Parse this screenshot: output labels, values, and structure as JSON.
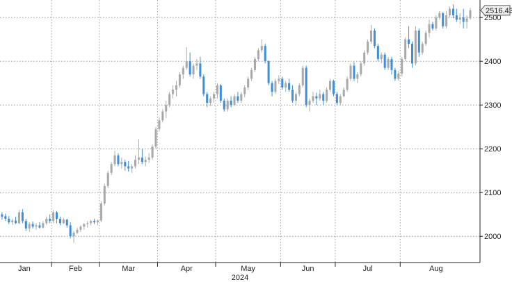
{
  "chart_data": {
    "type": "candlestick",
    "title": "",
    "xlabel": "2024",
    "ylabel": "",
    "ylim": [
      1940,
      2540
    ],
    "y_ticks": [
      2000,
      2100,
      2200,
      2300,
      2400,
      2500
    ],
    "x_ticks": [
      "Jan",
      "Feb",
      "Mar",
      "Apr",
      "May",
      "Jun",
      "Jul",
      "Aug"
    ],
    "year_label": "2024",
    "last_value": 2516.43,
    "last_value_label": "2516.43",
    "grid": true,
    "colors": {
      "up": "#a9a9a9",
      "down": "#3d8fdb",
      "grid": "#8a8a8a",
      "axis": "#222222"
    },
    "candles": [
      {
        "month": "Jan",
        "ohlc": [
          [
            2060,
            2068,
            2045,
            2050
          ],
          [
            2050,
            2055,
            2038,
            2045
          ],
          [
            2046,
            2052,
            2035,
            2040
          ],
          [
            2040,
            2046,
            2028,
            2032
          ],
          [
            2032,
            2040,
            2026,
            2036
          ],
          [
            2036,
            2045,
            2028,
            2030
          ],
          [
            2030,
            2060,
            2028,
            2055
          ],
          [
            2055,
            2062,
            2030,
            2035
          ],
          [
            2035,
            2040,
            2012,
            2018
          ],
          [
            2018,
            2032,
            2010,
            2028
          ],
          [
            2028,
            2034,
            2018,
            2022
          ],
          [
            2022,
            2030,
            2015,
            2025
          ],
          [
            2025,
            2032,
            2018,
            2020
          ],
          [
            2020,
            2035,
            2018,
            2030
          ],
          [
            2030,
            2045,
            2026,
            2040
          ],
          [
            2040,
            2050,
            2030,
            2035
          ]
        ]
      },
      {
        "month": "Feb",
        "ohlc": [
          [
            2035,
            2060,
            2030,
            2055
          ],
          [
            2055,
            2058,
            2030,
            2040
          ],
          [
            2040,
            2045,
            2025,
            2030
          ],
          [
            2030,
            2042,
            2028,
            2038
          ],
          [
            2038,
            2040,
            2020,
            2025
          ],
          [
            2025,
            2032,
            1995,
            2000
          ],
          [
            2000,
            2012,
            1985,
            2008
          ],
          [
            2008,
            2020,
            2005,
            2015
          ],
          [
            2015,
            2025,
            2010,
            2022
          ],
          [
            2022,
            2030,
            2015,
            2028
          ],
          [
            2028,
            2035,
            2020,
            2030
          ],
          [
            2030,
            2038,
            2025,
            2035
          ],
          [
            2035,
            2040,
            2028,
            2032
          ],
          [
            2032,
            2038,
            2025,
            2036
          ]
        ]
      },
      {
        "month": "Mar",
        "ohlc": [
          [
            2036,
            2080,
            2032,
            2075
          ],
          [
            2075,
            2120,
            2070,
            2115
          ],
          [
            2115,
            2150,
            2110,
            2145
          ],
          [
            2145,
            2170,
            2140,
            2165
          ],
          [
            2165,
            2195,
            2160,
            2185
          ],
          [
            2185,
            2190,
            2160,
            2165
          ],
          [
            2165,
            2180,
            2155,
            2170
          ],
          [
            2170,
            2175,
            2150,
            2160
          ],
          [
            2160,
            2172,
            2148,
            2155
          ],
          [
            2155,
            2165,
            2145,
            2160
          ],
          [
            2160,
            2185,
            2155,
            2175
          ],
          [
            2175,
            2222,
            2165,
            2180
          ],
          [
            2180,
            2200,
            2165,
            2170
          ],
          [
            2170,
            2182,
            2160,
            2175
          ],
          [
            2175,
            2190,
            2168,
            2180
          ],
          [
            2180,
            2210,
            2175,
            2205
          ],
          [
            2205,
            2250,
            2200,
            2245
          ]
        ]
      },
      {
        "month": "Apr",
        "ohlc": [
          [
            2245,
            2272,
            2240,
            2265
          ],
          [
            2265,
            2290,
            2260,
            2285
          ],
          [
            2285,
            2310,
            2270,
            2300
          ],
          [
            2300,
            2330,
            2295,
            2325
          ],
          [
            2325,
            2345,
            2315,
            2335
          ],
          [
            2335,
            2355,
            2320,
            2345
          ],
          [
            2345,
            2375,
            2340,
            2370
          ],
          [
            2370,
            2390,
            2360,
            2385
          ],
          [
            2385,
            2432,
            2380,
            2400
          ],
          [
            2400,
            2420,
            2365,
            2370
          ],
          [
            2370,
            2395,
            2360,
            2390
          ],
          [
            2390,
            2405,
            2380,
            2395
          ],
          [
            2395,
            2410,
            2360,
            2365
          ],
          [
            2365,
            2370,
            2320,
            2325
          ],
          [
            2325,
            2330,
            2295,
            2305
          ],
          [
            2305,
            2320,
            2298,
            2315
          ],
          [
            2315,
            2330,
            2305,
            2325
          ]
        ]
      },
      {
        "month": "May",
        "ohlc": [
          [
            2325,
            2350,
            2315,
            2345
          ],
          [
            2345,
            2348,
            2305,
            2310
          ],
          [
            2310,
            2315,
            2285,
            2290
          ],
          [
            2290,
            2315,
            2285,
            2310
          ],
          [
            2310,
            2320,
            2295,
            2300
          ],
          [
            2300,
            2325,
            2298,
            2320
          ],
          [
            2320,
            2330,
            2305,
            2310
          ],
          [
            2310,
            2330,
            2305,
            2325
          ],
          [
            2325,
            2345,
            2318,
            2340
          ],
          [
            2340,
            2365,
            2335,
            2360
          ],
          [
            2360,
            2385,
            2355,
            2380
          ],
          [
            2380,
            2410,
            2375,
            2405
          ],
          [
            2405,
            2430,
            2400,
            2425
          ],
          [
            2425,
            2450,
            2420,
            2435
          ],
          [
            2435,
            2440,
            2395,
            2400
          ],
          [
            2400,
            2402,
            2345,
            2350
          ],
          [
            2350,
            2355,
            2320,
            2330
          ],
          [
            2330,
            2360,
            2325,
            2355
          ],
          [
            2355,
            2368,
            2348,
            2360
          ]
        ]
      },
      {
        "month": "Jun",
        "ohlc": [
          [
            2360,
            2365,
            2335,
            2340
          ],
          [
            2340,
            2355,
            2330,
            2350
          ],
          [
            2350,
            2360,
            2330,
            2335
          ],
          [
            2335,
            2345,
            2305,
            2310
          ],
          [
            2310,
            2330,
            2300,
            2325
          ],
          [
            2325,
            2350,
            2320,
            2345
          ],
          [
            2345,
            2390,
            2340,
            2385
          ],
          [
            2385,
            2390,
            2295,
            2300
          ],
          [
            2300,
            2315,
            2285,
            2310
          ],
          [
            2310,
            2330,
            2305,
            2320
          ],
          [
            2320,
            2328,
            2300,
            2315
          ],
          [
            2315,
            2335,
            2310,
            2325
          ],
          [
            2325,
            2330,
            2300,
            2310
          ],
          [
            2310,
            2340,
            2305,
            2335
          ],
          [
            2335,
            2360,
            2330,
            2355
          ],
          [
            2355,
            2358,
            2320,
            2325
          ]
        ]
      },
      {
        "month": "Jul",
        "ohlc": [
          [
            2325,
            2330,
            2300,
            2305
          ],
          [
            2305,
            2325,
            2300,
            2320
          ],
          [
            2320,
            2340,
            2318,
            2335
          ],
          [
            2335,
            2365,
            2330,
            2360
          ],
          [
            2360,
            2395,
            2355,
            2390
          ],
          [
            2390,
            2398,
            2355,
            2360
          ],
          [
            2360,
            2375,
            2350,
            2370
          ],
          [
            2370,
            2400,
            2365,
            2395
          ],
          [
            2395,
            2425,
            2390,
            2420
          ],
          [
            2420,
            2450,
            2415,
            2445
          ],
          [
            2445,
            2483,
            2440,
            2470
          ],
          [
            2470,
            2475,
            2430,
            2435
          ],
          [
            2435,
            2440,
            2400,
            2405
          ],
          [
            2405,
            2420,
            2395,
            2415
          ],
          [
            2415,
            2420,
            2380,
            2385
          ],
          [
            2385,
            2410,
            2380,
            2405
          ],
          [
            2405,
            2410,
            2370,
            2380
          ],
          [
            2380,
            2385,
            2355,
            2360
          ],
          [
            2360,
            2378,
            2355,
            2372
          ]
        ]
      },
      {
        "month": "Aug",
        "ohlc": [
          [
            2372,
            2410,
            2365,
            2405
          ],
          [
            2405,
            2455,
            2400,
            2450
          ],
          [
            2450,
            2480,
            2430,
            2440
          ],
          [
            2440,
            2445,
            2385,
            2395
          ],
          [
            2395,
            2480,
            2390,
            2470
          ],
          [
            2470,
            2475,
            2410,
            2420
          ],
          [
            2420,
            2445,
            2415,
            2440
          ],
          [
            2440,
            2470,
            2435,
            2465
          ],
          [
            2465,
            2495,
            2455,
            2485
          ],
          [
            2485,
            2490,
            2470,
            2475
          ],
          [
            2475,
            2505,
            2470,
            2500
          ],
          [
            2500,
            2515,
            2495,
            2510
          ],
          [
            2510,
            2512,
            2475,
            2480
          ],
          [
            2480,
            2515,
            2475,
            2505
          ],
          [
            2505,
            2525,
            2500,
            2520
          ],
          [
            2520,
            2530,
            2498,
            2505
          ],
          [
            2505,
            2520,
            2490,
            2495
          ],
          [
            2495,
            2510,
            2485,
            2500
          ],
          [
            2500,
            2520,
            2475,
            2490
          ],
          [
            2490,
            2505,
            2475,
            2498
          ],
          [
            2498,
            2522,
            2495,
            2516.43
          ]
        ]
      }
    ]
  }
}
